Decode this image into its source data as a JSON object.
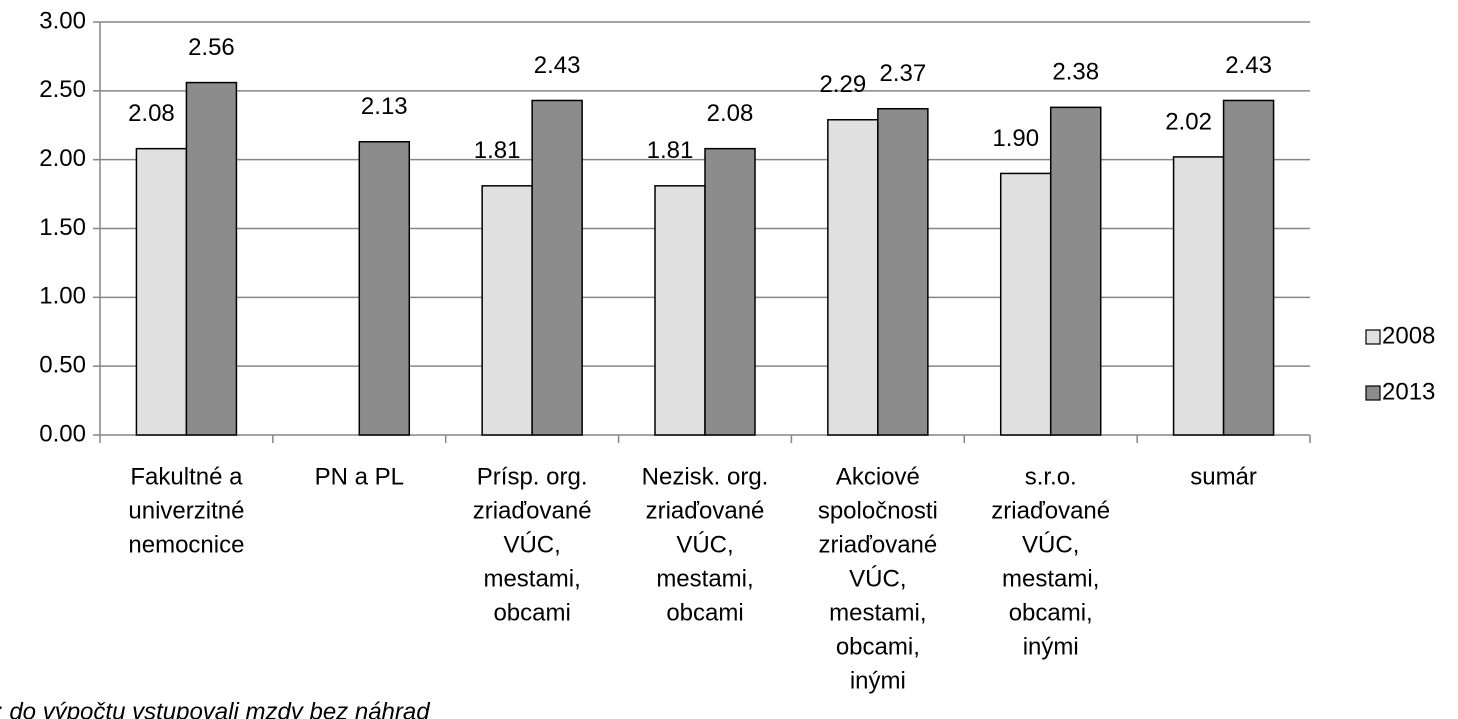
{
  "chart_data": {
    "type": "bar",
    "categories": [
      [
        "Fakultné a",
        "univerzitné",
        "nemocnice"
      ],
      [
        "PN a PL"
      ],
      [
        "Prísp. org.",
        "zriaďované",
        "VÚC,",
        "mestami,",
        "obcami"
      ],
      [
        "Nezisk. org.",
        "zriaďované",
        "VÚC,",
        "mestami,",
        "obcami"
      ],
      [
        "Akciové",
        "spoločnosti",
        "zriaďované",
        "VÚC,",
        "mestami,",
        "obcami,",
        "inými"
      ],
      [
        "s.r.o.",
        "zriaďované",
        "VÚC,",
        "mestami,",
        "obcami,",
        "inými"
      ],
      [
        "sumár"
      ]
    ],
    "series": [
      {
        "name": "2008",
        "color": "#e0e0e0",
        "values": [
          2.08,
          null,
          1.81,
          1.81,
          2.29,
          1.9,
          2.02
        ],
        "value_labels": [
          "2.08",
          null,
          "1.81",
          "1.81",
          "2.29",
          "1.90",
          "2.02"
        ]
      },
      {
        "name": "2013",
        "color": "#8c8c8c",
        "values": [
          2.56,
          2.13,
          2.43,
          2.08,
          2.37,
          2.38,
          2.43
        ],
        "value_labels": [
          "2.56",
          "2.13",
          "2.43",
          "2.08",
          "2.37",
          "2.38",
          "2.43"
        ]
      }
    ],
    "ylim": [
      0,
      3
    ],
    "yticks": [
      {
        "value": 0,
        "label": "0.00"
      },
      {
        "value": 0.5,
        "label": "0.50"
      },
      {
        "value": 1,
        "label": "1.00"
      },
      {
        "value": 1.5,
        "label": "1.50"
      },
      {
        "value": 2,
        "label": "2.00"
      },
      {
        "value": 2.5,
        "label": "2.50"
      },
      {
        "value": 3,
        "label": "3.00"
      }
    ],
    "grid": true,
    "legend": "right",
    "note": ": do výpočtu vstupovali mzdy bez náhrad"
  }
}
